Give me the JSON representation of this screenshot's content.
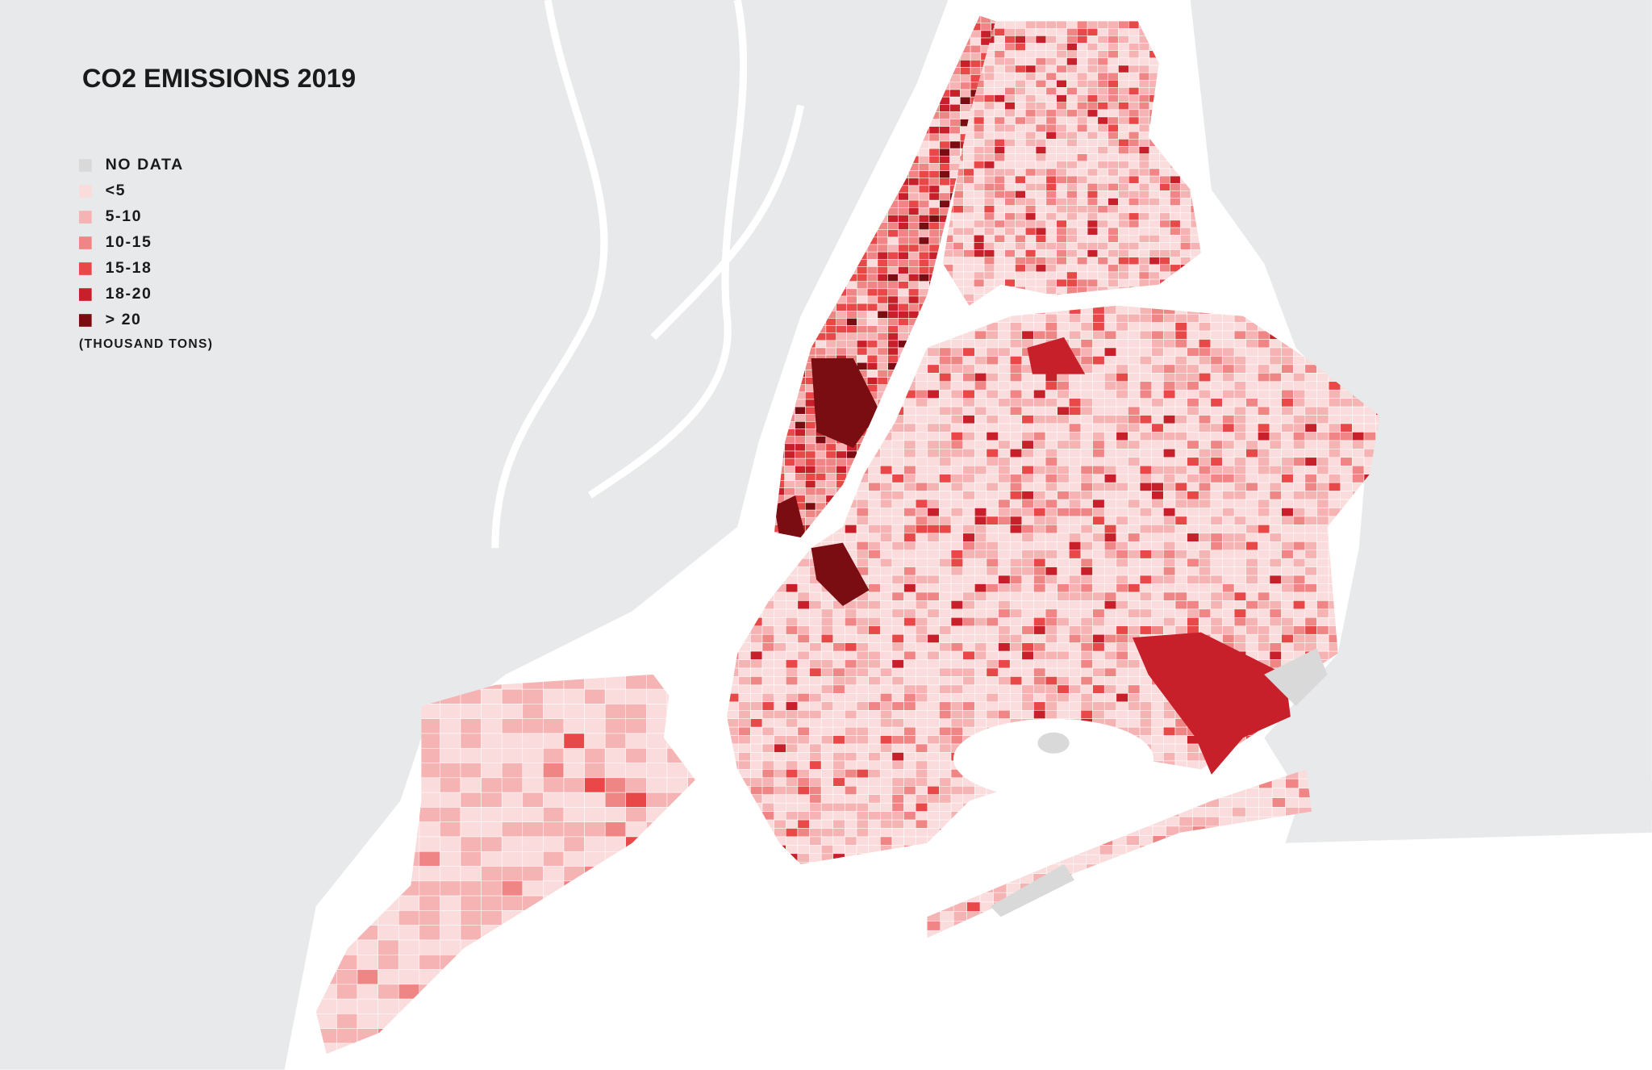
{
  "title": "CO2 EMISSIONS 2019",
  "legend": {
    "items": [
      {
        "label": "NO DATA",
        "color": "#d9d9d9"
      },
      {
        "label": "<5",
        "color": "#fbdcdc"
      },
      {
        "label": "5-10",
        "color": "#f6b3b3"
      },
      {
        "label": "10-15",
        "color": "#f08585"
      },
      {
        "label": "15-18",
        "color": "#e84848"
      },
      {
        "label": "18-20",
        "color": "#c8202a"
      },
      {
        "label": ">  20",
        "color": "#7a0d12"
      }
    ],
    "unit": "(THOUSAND TONS)"
  }
}
